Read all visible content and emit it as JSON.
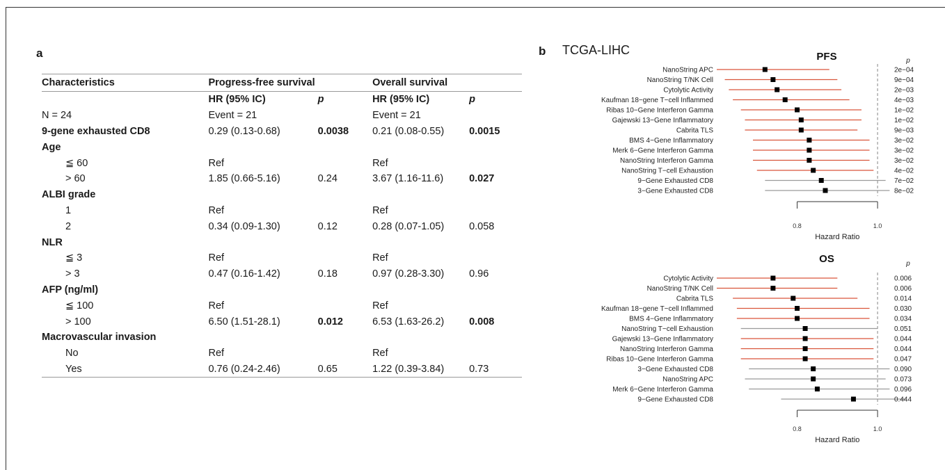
{
  "panel_a": {
    "label": "a",
    "headers": [
      "Characteristics",
      "Progress-free survival",
      "",
      "Overall survival",
      ""
    ],
    "subheaders": [
      "",
      "HR (95% IC)",
      "p",
      "HR (95% IC)",
      "p"
    ],
    "rows": [
      {
        "cells": [
          "N = 24",
          "Event = 21",
          "",
          "Event = 21",
          ""
        ],
        "indent": false,
        "boldLabel": false,
        "boldP1": false,
        "boldP2": false
      },
      {
        "cells": [
          "9-gene exhausted CD8",
          "0.29 (0.13-0.68)",
          "0.0038",
          "0.21 (0.08-0.55)",
          "0.0015"
        ],
        "indent": false,
        "boldLabel": true,
        "boldP1": true,
        "boldP2": true
      },
      {
        "cells": [
          "Age",
          "",
          "",
          "",
          ""
        ],
        "indent": false,
        "boldLabel": true,
        "boldP1": false,
        "boldP2": false
      },
      {
        "cells": [
          "≦ 60",
          "Ref",
          "",
          "Ref",
          ""
        ],
        "indent": true,
        "boldLabel": false,
        "boldP1": false,
        "boldP2": false
      },
      {
        "cells": [
          "> 60",
          "1.85 (0.66-5.16)",
          "0.24",
          "3.67 (1.16-11.6)",
          "0.027"
        ],
        "indent": true,
        "boldLabel": false,
        "boldP1": false,
        "boldP2": true
      },
      {
        "cells": [
          "ALBI grade",
          "",
          "",
          "",
          ""
        ],
        "indent": false,
        "boldLabel": true,
        "boldP1": false,
        "boldP2": false
      },
      {
        "cells": [
          "1",
          "Ref",
          "",
          "Ref",
          ""
        ],
        "indent": true,
        "boldLabel": false,
        "boldP1": false,
        "boldP2": false
      },
      {
        "cells": [
          "2",
          "0.34 (0.09-1.30)",
          "0.12",
          "0.28 (0.07-1.05)",
          "0.058"
        ],
        "indent": true,
        "boldLabel": false,
        "boldP1": false,
        "boldP2": false
      },
      {
        "cells": [
          "NLR",
          "",
          "",
          "",
          ""
        ],
        "indent": false,
        "boldLabel": true,
        "boldP1": false,
        "boldP2": false
      },
      {
        "cells": [
          "≦ 3",
          "Ref",
          "",
          "Ref",
          ""
        ],
        "indent": true,
        "boldLabel": false,
        "boldP1": false,
        "boldP2": false
      },
      {
        "cells": [
          "> 3",
          "0.47 (0.16-1.42)",
          "0.18",
          "0.97 (0.28-3.30)",
          "0.96"
        ],
        "indent": true,
        "boldLabel": false,
        "boldP1": false,
        "boldP2": false
      },
      {
        "cells": [
          "AFP (ng/ml)",
          "",
          "",
          "",
          ""
        ],
        "indent": false,
        "boldLabel": true,
        "boldP1": false,
        "boldP2": false
      },
      {
        "cells": [
          "≦ 100",
          "Ref",
          "",
          "Ref",
          ""
        ],
        "indent": true,
        "boldLabel": false,
        "boldP1": false,
        "boldP2": false
      },
      {
        "cells": [
          "> 100",
          "6.50 (1.51-28.1)",
          "0.012",
          "6.53 (1.63-26.2)",
          "0.008"
        ],
        "indent": true,
        "boldLabel": false,
        "boldP1": true,
        "boldP2": true
      },
      {
        "cells": [
          "Macrovascular invasion",
          "",
          "",
          "",
          ""
        ],
        "indent": false,
        "boldLabel": true,
        "boldP1": false,
        "boldP2": false
      },
      {
        "cells": [
          "No",
          "Ref",
          "",
          "Ref",
          ""
        ],
        "indent": true,
        "boldLabel": false,
        "boldP1": false,
        "boldP2": false
      },
      {
        "cells": [
          "Yes",
          "0.76 (0.24-2.46)",
          "0.65",
          "1.22 (0.39-3.84)",
          "0.73"
        ],
        "indent": true,
        "boldLabel": false,
        "boldP1": false,
        "boldP2": false
      }
    ]
  },
  "panel_b": {
    "label": "b",
    "cohort": "TCGA-LIHC",
    "colors": {
      "significant": "#d9553a",
      "nonsignificant": "#9a9a9a",
      "marker": "#000000",
      "refline": "#9a9a9a"
    }
  },
  "chart_data": [
    {
      "type": "forest",
      "title": "PFS",
      "xlabel": "Hazard Ratio",
      "p_header": "p",
      "xlim": [
        0.6,
        1.05
      ],
      "xticks": [
        0.8,
        1.0
      ],
      "xtick_labels": [
        "0.8",
        "1.0"
      ],
      "reference_line": 1.0,
      "rows": [
        {
          "label": "NanoString APC",
          "hr": 0.72,
          "lo": 0.6,
          "hi": 0.88,
          "p": "2e−04",
          "sig": true
        },
        {
          "label": "NanoString T/NK Cell",
          "hr": 0.74,
          "lo": 0.62,
          "hi": 0.9,
          "p": "9e−04",
          "sig": true
        },
        {
          "label": "Cytolytic Activity",
          "hr": 0.75,
          "lo": 0.63,
          "hi": 0.91,
          "p": "2e−03",
          "sig": true
        },
        {
          "label": "Kaufman 18−gene T−cell Inflammed",
          "hr": 0.77,
          "lo": 0.64,
          "hi": 0.93,
          "p": "4e−03",
          "sig": true
        },
        {
          "label": "Ribas 10−Gene Interferon Gamma",
          "hr": 0.8,
          "lo": 0.66,
          "hi": 0.96,
          "p": "1e−02",
          "sig": true
        },
        {
          "label": "Gajewski 13−Gene Inflammatory",
          "hr": 0.81,
          "lo": 0.67,
          "hi": 0.96,
          "p": "1e−02",
          "sig": true
        },
        {
          "label": "Cabrita TLS",
          "hr": 0.81,
          "lo": 0.67,
          "hi": 0.95,
          "p": "9e−03",
          "sig": true
        },
        {
          "label": "BMS 4−Gene Inflammatory",
          "hr": 0.83,
          "lo": 0.69,
          "hi": 0.98,
          "p": "3e−02",
          "sig": true
        },
        {
          "label": "Merk 6−Gene Interferon Gamma",
          "hr": 0.83,
          "lo": 0.69,
          "hi": 0.98,
          "p": "3e−02",
          "sig": true
        },
        {
          "label": "NanoString Interferon Gamma",
          "hr": 0.83,
          "lo": 0.69,
          "hi": 0.98,
          "p": "3e−02",
          "sig": true
        },
        {
          "label": "NanoString T−cell Exhaustion",
          "hr": 0.84,
          "lo": 0.7,
          "hi": 0.99,
          "p": "4e−02",
          "sig": true
        },
        {
          "label": "9−Gene Exhausted CD8",
          "hr": 0.86,
          "lo": 0.72,
          "hi": 1.02,
          "p": "7e−02",
          "sig": false
        },
        {
          "label": "3−Gene Exhausted CD8",
          "hr": 0.87,
          "lo": 0.72,
          "hi": 1.03,
          "p": "8e−02",
          "sig": false
        }
      ]
    },
    {
      "type": "forest",
      "title": "OS",
      "xlabel": "Hazard Ratio",
      "p_header": "p",
      "xlim": [
        0.6,
        1.05
      ],
      "xticks": [
        0.8,
        1.0
      ],
      "xtick_labels": [
        "0.8",
        "1.0"
      ],
      "reference_line": 1.0,
      "rows": [
        {
          "label": "Cytolytic Activity",
          "hr": 0.74,
          "lo": 0.6,
          "hi": 0.9,
          "p": "0.006",
          "sig": true
        },
        {
          "label": "NanoString T/NK Cell",
          "hr": 0.74,
          "lo": 0.6,
          "hi": 0.9,
          "p": "0.006",
          "sig": true
        },
        {
          "label": "Cabrita TLS",
          "hr": 0.79,
          "lo": 0.64,
          "hi": 0.95,
          "p": "0.014",
          "sig": true
        },
        {
          "label": "Kaufman 18−gene T−cell Inflammed",
          "hr": 0.8,
          "lo": 0.65,
          "hi": 0.98,
          "p": "0.030",
          "sig": true
        },
        {
          "label": "BMS 4−Gene Inflammatory",
          "hr": 0.8,
          "lo": 0.65,
          "hi": 0.98,
          "p": "0.034",
          "sig": true
        },
        {
          "label": "NanoString T−cell Exhaustion",
          "hr": 0.82,
          "lo": 0.66,
          "hi": 1.0,
          "p": "0.051",
          "sig": false
        },
        {
          "label": "Gajewski 13−Gene Inflammatory",
          "hr": 0.82,
          "lo": 0.66,
          "hi": 0.99,
          "p": "0.044",
          "sig": true
        },
        {
          "label": "NanoString Interferon Gamma",
          "hr": 0.82,
          "lo": 0.66,
          "hi": 0.99,
          "p": "0.044",
          "sig": true
        },
        {
          "label": "Ribas 10−Gene Interferon Gamma",
          "hr": 0.82,
          "lo": 0.66,
          "hi": 0.99,
          "p": "0.047",
          "sig": true
        },
        {
          "label": "3−Gene Exhausted CD8",
          "hr": 0.84,
          "lo": 0.68,
          "hi": 1.03,
          "p": "0.090",
          "sig": false
        },
        {
          "label": "NanoString APC",
          "hr": 0.84,
          "lo": 0.67,
          "hi": 1.02,
          "p": "0.073",
          "sig": false
        },
        {
          "label": "Merk 6−Gene Interferon Gamma",
          "hr": 0.85,
          "lo": 0.68,
          "hi": 1.03,
          "p": "0.096",
          "sig": false
        },
        {
          "label": "9−Gene Exhausted CD8",
          "hr": 0.94,
          "lo": 0.76,
          "hi": 1.15,
          "p": "0.444",
          "sig": false
        }
      ]
    }
  ]
}
